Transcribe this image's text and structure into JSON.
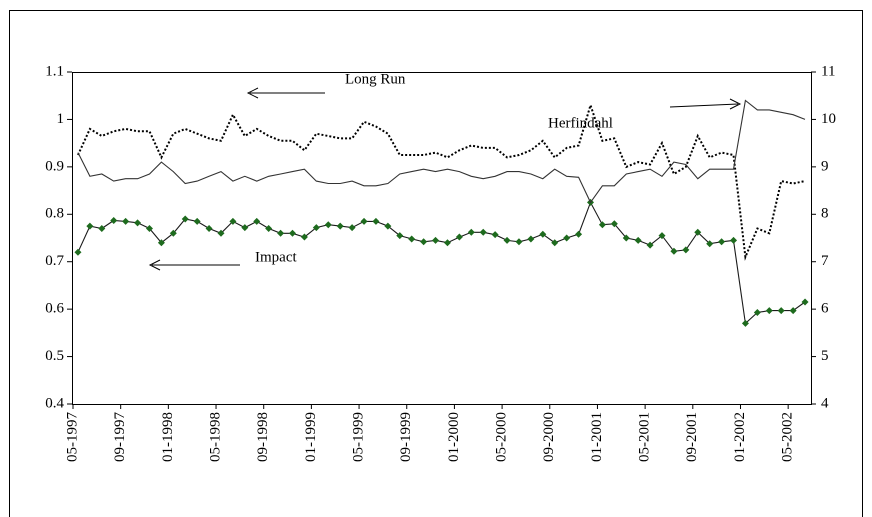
{
  "chart_data": {
    "type": "line",
    "categories": [
      "05-1997",
      null,
      null,
      null,
      "09-1997",
      null,
      null,
      null,
      "01-1998",
      null,
      null,
      null,
      "05-1998",
      null,
      null,
      null,
      "09-1998",
      null,
      null,
      null,
      "01-1999",
      null,
      null,
      null,
      "05-1999",
      null,
      null,
      null,
      "09-1999",
      null,
      null,
      null,
      "01-2000",
      null,
      null,
      null,
      "05-2000",
      null,
      null,
      null,
      "09-2000",
      null,
      null,
      null,
      "01-2001",
      null,
      null,
      null,
      "05-2001",
      null,
      null,
      null,
      "09-2001",
      null,
      null,
      null,
      "01-2002",
      null,
      null,
      null,
      "05-2002",
      null
    ],
    "ylim": [
      0.4,
      1.1
    ],
    "yticks": [
      0.4,
      0.5,
      0.6,
      0.7,
      0.8,
      0.9,
      1,
      1.1
    ],
    "y2lim": [
      4,
      11
    ],
    "y2ticks": [
      4,
      5,
      6,
      7,
      8,
      9,
      10,
      11
    ],
    "series": [
      {
        "name": "Long Run",
        "color": "#000000",
        "style": "dotted",
        "values": [
          0.925,
          0.98,
          0.965,
          0.975,
          0.98,
          0.975,
          0.975,
          0.92,
          0.97,
          0.98,
          0.97,
          0.96,
          0.955,
          1.01,
          0.965,
          0.98,
          0.965,
          0.955,
          0.955,
          0.935,
          0.97,
          0.965,
          0.96,
          0.96,
          0.995,
          0.985,
          0.97,
          0.925,
          0.925,
          0.925,
          0.93,
          0.92,
          0.935,
          0.945,
          0.94,
          0.94,
          0.92,
          0.925,
          0.935,
          0.955,
          0.92,
          0.94,
          0.945,
          1.03,
          0.955,
          0.96,
          0.9,
          0.91,
          0.905,
          0.95,
          0.885,
          0.9,
          0.965,
          0.92,
          0.93,
          0.925,
          0.71,
          0.77,
          0.76,
          0.87,
          0.865,
          0.87
        ]
      },
      {
        "name": "Impact",
        "color": "#1e6b1e",
        "style": "markers",
        "values": [
          0.72,
          0.775,
          0.77,
          0.787,
          0.785,
          0.782,
          0.77,
          0.74,
          0.76,
          0.79,
          0.785,
          0.77,
          0.76,
          0.785,
          0.772,
          0.785,
          0.77,
          0.76,
          0.76,
          0.752,
          0.772,
          0.778,
          0.775,
          0.772,
          0.785,
          0.785,
          0.775,
          0.755,
          0.748,
          0.742,
          0.745,
          0.74,
          0.752,
          0.762,
          0.762,
          0.757,
          0.745,
          0.742,
          0.748,
          0.758,
          0.74,
          0.75,
          0.758,
          0.825,
          0.778,
          0.78,
          0.75,
          0.745,
          0.735,
          0.755,
          0.722,
          0.725,
          0.762,
          0.738,
          0.742,
          0.745,
          0.57,
          0.593,
          0.597,
          0.597,
          0.597,
          0.615
        ]
      },
      {
        "name": "Herfindahl",
        "color": "#333333",
        "style": "solid",
        "axis": "y2",
        "values": [
          9.3,
          8.8,
          8.85,
          8.7,
          8.75,
          8.75,
          8.85,
          9.1,
          8.9,
          8.65,
          8.7,
          8.8,
          8.9,
          8.7,
          8.8,
          8.7,
          8.8,
          8.85,
          8.9,
          8.95,
          8.7,
          8.65,
          8.65,
          8.7,
          8.6,
          8.6,
          8.65,
          8.85,
          8.9,
          8.95,
          8.9,
          8.95,
          8.9,
          8.8,
          8.75,
          8.8,
          8.9,
          8.9,
          8.85,
          8.75,
          8.95,
          8.8,
          8.78,
          8.25,
          8.6,
          8.6,
          8.85,
          8.9,
          8.95,
          8.8,
          9.1,
          9.05,
          8.75,
          8.95,
          8.95,
          8.95,
          10.4,
          10.2,
          10.2,
          10.15,
          10.1,
          10.0
        ]
      }
    ]
  }
}
